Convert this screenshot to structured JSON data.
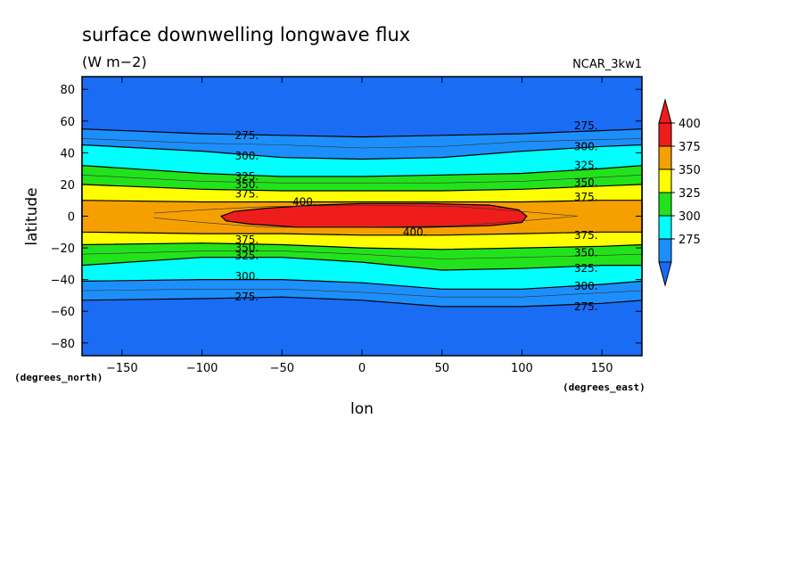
{
  "title": "surface downwelling longwave flux",
  "units": "(W m−2)",
  "model": "NCAR_3kw1",
  "chart_data": {
    "type": "filled-contour",
    "title": "surface downwelling longwave flux",
    "units": "(W m−2)",
    "xlabel": "lon",
    "ylabel": "latitude",
    "x_units_label": "(degrees_east)",
    "y_units_label": "(degrees_north)",
    "xlim": [
      -175,
      175
    ],
    "ylim": [
      -88,
      88
    ],
    "x_ticks": [
      -150,
      -100,
      -50,
      0,
      50,
      100,
      150
    ],
    "x_tick_labels": [
      "−150",
      "−100",
      "−50",
      "0",
      "50",
      "100",
      "150"
    ],
    "y_ticks": [
      80,
      60,
      40,
      20,
      0,
      -20,
      -40,
      -60,
      -80
    ],
    "y_tick_labels": [
      "80",
      "60",
      "40",
      "20",
      "0",
      "−20",
      "−40",
      "−60",
      "−80"
    ],
    "levels": [
      275,
      300,
      325,
      350,
      375,
      400
    ],
    "colorbar": {
      "labels": [
        "400",
        "375",
        "350",
        "325",
        "300",
        "275"
      ],
      "colors": [
        "#ef1c1c",
        "#f5a000",
        "#ffff00",
        "#22e31b",
        "#00ffff",
        "#1c8ffd"
      ],
      "over_color": "#ef1c1c",
      "under_color": "#1a6cf5"
    },
    "background_color": "#1a6cf5",
    "bands": [
      {
        "level": 275,
        "color": "#1c8ffd",
        "north": [
          [
            -175,
            55
          ],
          [
            -100,
            52
          ],
          [
            -50,
            51
          ],
          [
            0,
            50
          ],
          [
            50,
            51
          ],
          [
            100,
            52
          ],
          [
            150,
            54
          ],
          [
            175,
            55
          ]
        ],
        "south": [
          [
            -175,
            -53
          ],
          [
            -100,
            -52
          ],
          [
            -50,
            -51
          ],
          [
            0,
            -53
          ],
          [
            50,
            -57
          ],
          [
            100,
            -57
          ],
          [
            150,
            -55
          ],
          [
            175,
            -53
          ]
        ]
      },
      {
        "level": 300,
        "color": "#00ffff",
        "north": [
          [
            -175,
            45
          ],
          [
            -100,
            41
          ],
          [
            -50,
            37
          ],
          [
            0,
            36
          ],
          [
            50,
            37
          ],
          [
            100,
            41
          ],
          [
            150,
            44
          ],
          [
            175,
            45
          ]
        ],
        "south": [
          [
            -175,
            -41
          ],
          [
            -100,
            -40
          ],
          [
            -50,
            -40
          ],
          [
            0,
            -42
          ],
          [
            50,
            -46
          ],
          [
            100,
            -46
          ],
          [
            150,
            -43
          ],
          [
            175,
            -41
          ]
        ]
      },
      {
        "level": 325,
        "color": "#22e31b",
        "north": [
          [
            -175,
            32
          ],
          [
            -100,
            27
          ],
          [
            -50,
            25
          ],
          [
            0,
            25
          ],
          [
            50,
            26
          ],
          [
            100,
            27
          ],
          [
            150,
            30
          ],
          [
            175,
            32
          ]
        ],
        "south": [
          [
            -175,
            -31
          ],
          [
            -100,
            -26
          ],
          [
            -50,
            -26
          ],
          [
            0,
            -29
          ],
          [
            50,
            -34
          ],
          [
            100,
            -33
          ],
          [
            150,
            -31
          ],
          [
            175,
            -31
          ]
        ]
      },
      {
        "level": 350,
        "color": "#ffff00",
        "north": [
          [
            -175,
            20
          ],
          [
            -100,
            17
          ],
          [
            -50,
            16
          ],
          [
            0,
            16
          ],
          [
            50,
            16
          ],
          [
            100,
            17
          ],
          [
            150,
            19
          ],
          [
            175,
            20
          ]
        ],
        "south": [
          [
            -175,
            -18
          ],
          [
            -100,
            -17
          ],
          [
            -50,
            -18
          ],
          [
            0,
            -20
          ],
          [
            50,
            -21
          ],
          [
            100,
            -20
          ],
          [
            150,
            -19
          ],
          [
            175,
            -18
          ]
        ]
      },
      {
        "level": 375,
        "color": "#f5a000",
        "north": [
          [
            -175,
            10
          ],
          [
            -100,
            9
          ],
          [
            -50,
            9
          ],
          [
            0,
            9
          ],
          [
            50,
            9
          ],
          [
            100,
            9
          ],
          [
            150,
            10
          ],
          [
            175,
            10
          ]
        ],
        "south": [
          [
            -175,
            -10
          ],
          [
            -100,
            -11
          ],
          [
            -50,
            -11
          ],
          [
            0,
            -12
          ],
          [
            50,
            -12
          ],
          [
            100,
            -11
          ],
          [
            150,
            -10
          ],
          [
            175,
            -10
          ]
        ]
      }
    ],
    "core_400": [
      [
        -88,
        0
      ],
      [
        -80,
        3
      ],
      [
        -60,
        5
      ],
      [
        -30,
        7
      ],
      [
        0,
        8
      ],
      [
        40,
        8
      ],
      [
        80,
        7
      ],
      [
        98,
        4
      ],
      [
        103,
        0
      ],
      [
        100,
        -4
      ],
      [
        80,
        -6
      ],
      [
        40,
        -7
      ],
      [
        0,
        -7
      ],
      [
        -40,
        -7
      ],
      [
        -70,
        -5
      ],
      [
        -85,
        -3
      ]
    ],
    "inner_contours": [
      [
        [
          -130,
          2
        ],
        [
          -100,
          4
        ],
        [
          -60,
          6
        ],
        [
          0,
          7
        ],
        [
          60,
          6
        ],
        [
          100,
          3
        ],
        [
          135,
          0
        ],
        [
          100,
          -3
        ],
        [
          60,
          -6
        ],
        [
          0,
          -7
        ],
        [
          -60,
          -7
        ],
        [
          -100,
          -4
        ],
        [
          -130,
          -1
        ]
      ],
      [
        [
          -175,
          49
        ],
        [
          -100,
          46
        ],
        [
          -50,
          45
        ],
        [
          0,
          43
        ],
        [
          50,
          44
        ],
        [
          100,
          47
        ],
        [
          175,
          49
        ]
      ],
      [
        [
          -175,
          -47
        ],
        [
          -100,
          -46
        ],
        [
          -50,
          -46
        ],
        [
          0,
          -48
        ],
        [
          50,
          -51
        ],
        [
          100,
          -51
        ],
        [
          175,
          -47
        ]
      ],
      [
        [
          -175,
          26
        ],
        [
          -100,
          22
        ],
        [
          -50,
          21
        ],
        [
          0,
          21
        ],
        [
          50,
          21
        ],
        [
          100,
          22
        ],
        [
          175,
          26
        ]
      ],
      [
        [
          -175,
          -24
        ],
        [
          -100,
          -22
        ],
        [
          -50,
          -22
        ],
        [
          0,
          -24
        ],
        [
          50,
          -27
        ],
        [
          100,
          -26
        ],
        [
          175,
          -24
        ]
      ]
    ],
    "contour_labels": [
      {
        "text": "275.",
        "lon": -72,
        "lat": 51
      },
      {
        "text": "300.",
        "lon": -72,
        "lat": 38
      },
      {
        "text": "325.",
        "lon": -72,
        "lat": 25
      },
      {
        "text": "350.",
        "lon": -72,
        "lat": 20
      },
      {
        "text": "375.",
        "lon": -72,
        "lat": 14
      },
      {
        "text": "400.",
        "lon": -36,
        "lat": 9
      },
      {
        "text": "400.",
        "lon": 33,
        "lat": -10
      },
      {
        "text": "375.",
        "lon": -72,
        "lat": -15
      },
      {
        "text": "350.",
        "lon": -72,
        "lat": -20
      },
      {
        "text": "325.",
        "lon": -72,
        "lat": -25
      },
      {
        "text": "300.",
        "lon": -72,
        "lat": -38
      },
      {
        "text": "275.",
        "lon": -72,
        "lat": -51
      },
      {
        "text": "275.",
        "lon": 140,
        "lat": 57
      },
      {
        "text": "300.",
        "lon": 140,
        "lat": 44
      },
      {
        "text": "325.",
        "lon": 140,
        "lat": 32
      },
      {
        "text": "350.",
        "lon": 140,
        "lat": 21
      },
      {
        "text": "375.",
        "lon": 140,
        "lat": 12
      },
      {
        "text": "375.",
        "lon": 140,
        "lat": -12
      },
      {
        "text": "350.",
        "lon": 140,
        "lat": -23
      },
      {
        "text": "325.",
        "lon": 140,
        "lat": -33
      },
      {
        "text": "300.",
        "lon": 140,
        "lat": -44
      },
      {
        "text": "275.",
        "lon": 140,
        "lat": -57
      }
    ]
  }
}
